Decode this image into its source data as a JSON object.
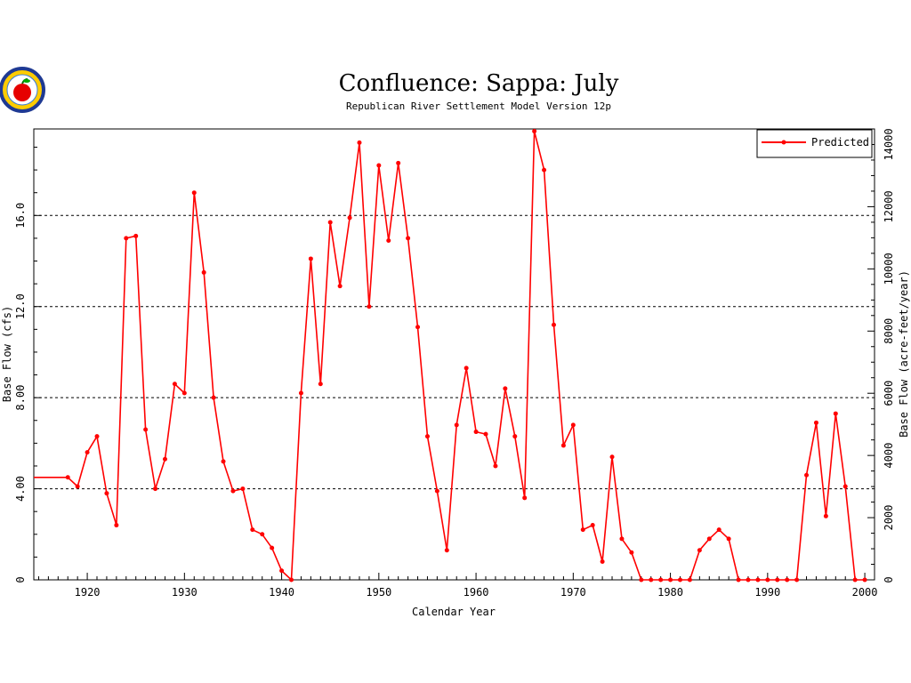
{
  "logo": {
    "icon": "apple-logo-icon"
  },
  "colors": {
    "series": "#ff0000",
    "axis": "#000000",
    "grid": "#000000",
    "background": "#ffffff"
  },
  "chart_data": {
    "type": "line",
    "title": "Confluence:  Sappa:  July",
    "subtitle": "Republican River Settlement Model Version 12p",
    "xlabel": "Calendar Year",
    "ylabel": "Base Flow (cfs)",
    "y2label": "Base Flow (acre-feet/year)",
    "xlim": [
      1914.5,
      2001
    ],
    "ylim": [
      0,
      19.8
    ],
    "y2lim": [
      0,
      14500
    ],
    "x_ticks": [
      1920,
      1930,
      1940,
      1950,
      1960,
      1970,
      1980,
      1990,
      2000
    ],
    "x_tick_labels": [
      "1920",
      "1930",
      "1940",
      "1950",
      "1960",
      "1970",
      "1980",
      "1990",
      "2000"
    ],
    "y_ticks": [
      0,
      4,
      8,
      12,
      16
    ],
    "y_tick_labels": [
      "0",
      "4.00",
      "8.00",
      "12.0",
      "16.0"
    ],
    "y2_ticks": [
      0,
      2000,
      4000,
      6000,
      8000,
      10000,
      12000,
      14000
    ],
    "y2_tick_labels": [
      "0",
      "2000",
      "4000",
      "6000",
      "8000",
      "10000",
      "12000",
      "14000"
    ],
    "grid": "horizontal dashed at y = 4, 8, 12, 16",
    "legend_position": "top-right",
    "series": [
      {
        "name": "Predicted",
        "x": [
          1914.5,
          1918,
          1919,
          1920,
          1921,
          1922,
          1923,
          1924,
          1925,
          1926,
          1927,
          1928,
          1929,
          1930,
          1931,
          1932,
          1933,
          1934,
          1935,
          1936,
          1937,
          1938,
          1939,
          1940,
          1941,
          1942,
          1943,
          1944,
          1945,
          1946,
          1947,
          1948,
          1949,
          1950,
          1951,
          1952,
          1953,
          1954,
          1955,
          1956,
          1957,
          1958,
          1959,
          1960,
          1961,
          1962,
          1963,
          1964,
          1965,
          1966,
          1967,
          1968,
          1969,
          1970,
          1971,
          1972,
          1973,
          1974,
          1975,
          1976,
          1977,
          1978,
          1979,
          1980,
          1981,
          1982,
          1983,
          1984,
          1985,
          1986,
          1987,
          1988,
          1989,
          1990,
          1991,
          1992,
          1993,
          1994,
          1995,
          1996,
          1997,
          1998,
          1999,
          2000
        ],
        "values": [
          4.5,
          4.5,
          4.1,
          5.6,
          6.3,
          3.8,
          2.4,
          15.0,
          15.1,
          6.6,
          4.0,
          5.3,
          8.6,
          8.2,
          17.0,
          13.5,
          8.0,
          5.2,
          3.9,
          4.0,
          2.2,
          2.0,
          1.4,
          0.4,
          0.0,
          8.2,
          14.1,
          8.6,
          15.7,
          12.9,
          15.9,
          19.2,
          12.0,
          18.2,
          14.9,
          18.3,
          15.0,
          11.1,
          6.3,
          3.9,
          1.3,
          6.8,
          9.3,
          6.5,
          6.4,
          5.0,
          8.4,
          6.3,
          3.6,
          19.7,
          18.0,
          11.2,
          5.9,
          6.8,
          2.2,
          2.4,
          0.8,
          5.4,
          1.8,
          1.2,
          0.0,
          0.0,
          0.0,
          0.0,
          0.0,
          0.0,
          1.3,
          1.8,
          2.2,
          1.8,
          0.0,
          0.0,
          0.0,
          0.0,
          0.0,
          0.0,
          0.0,
          4.6,
          6.9,
          2.8,
          7.3,
          4.1,
          0.0,
          0.0
        ]
      }
    ]
  }
}
